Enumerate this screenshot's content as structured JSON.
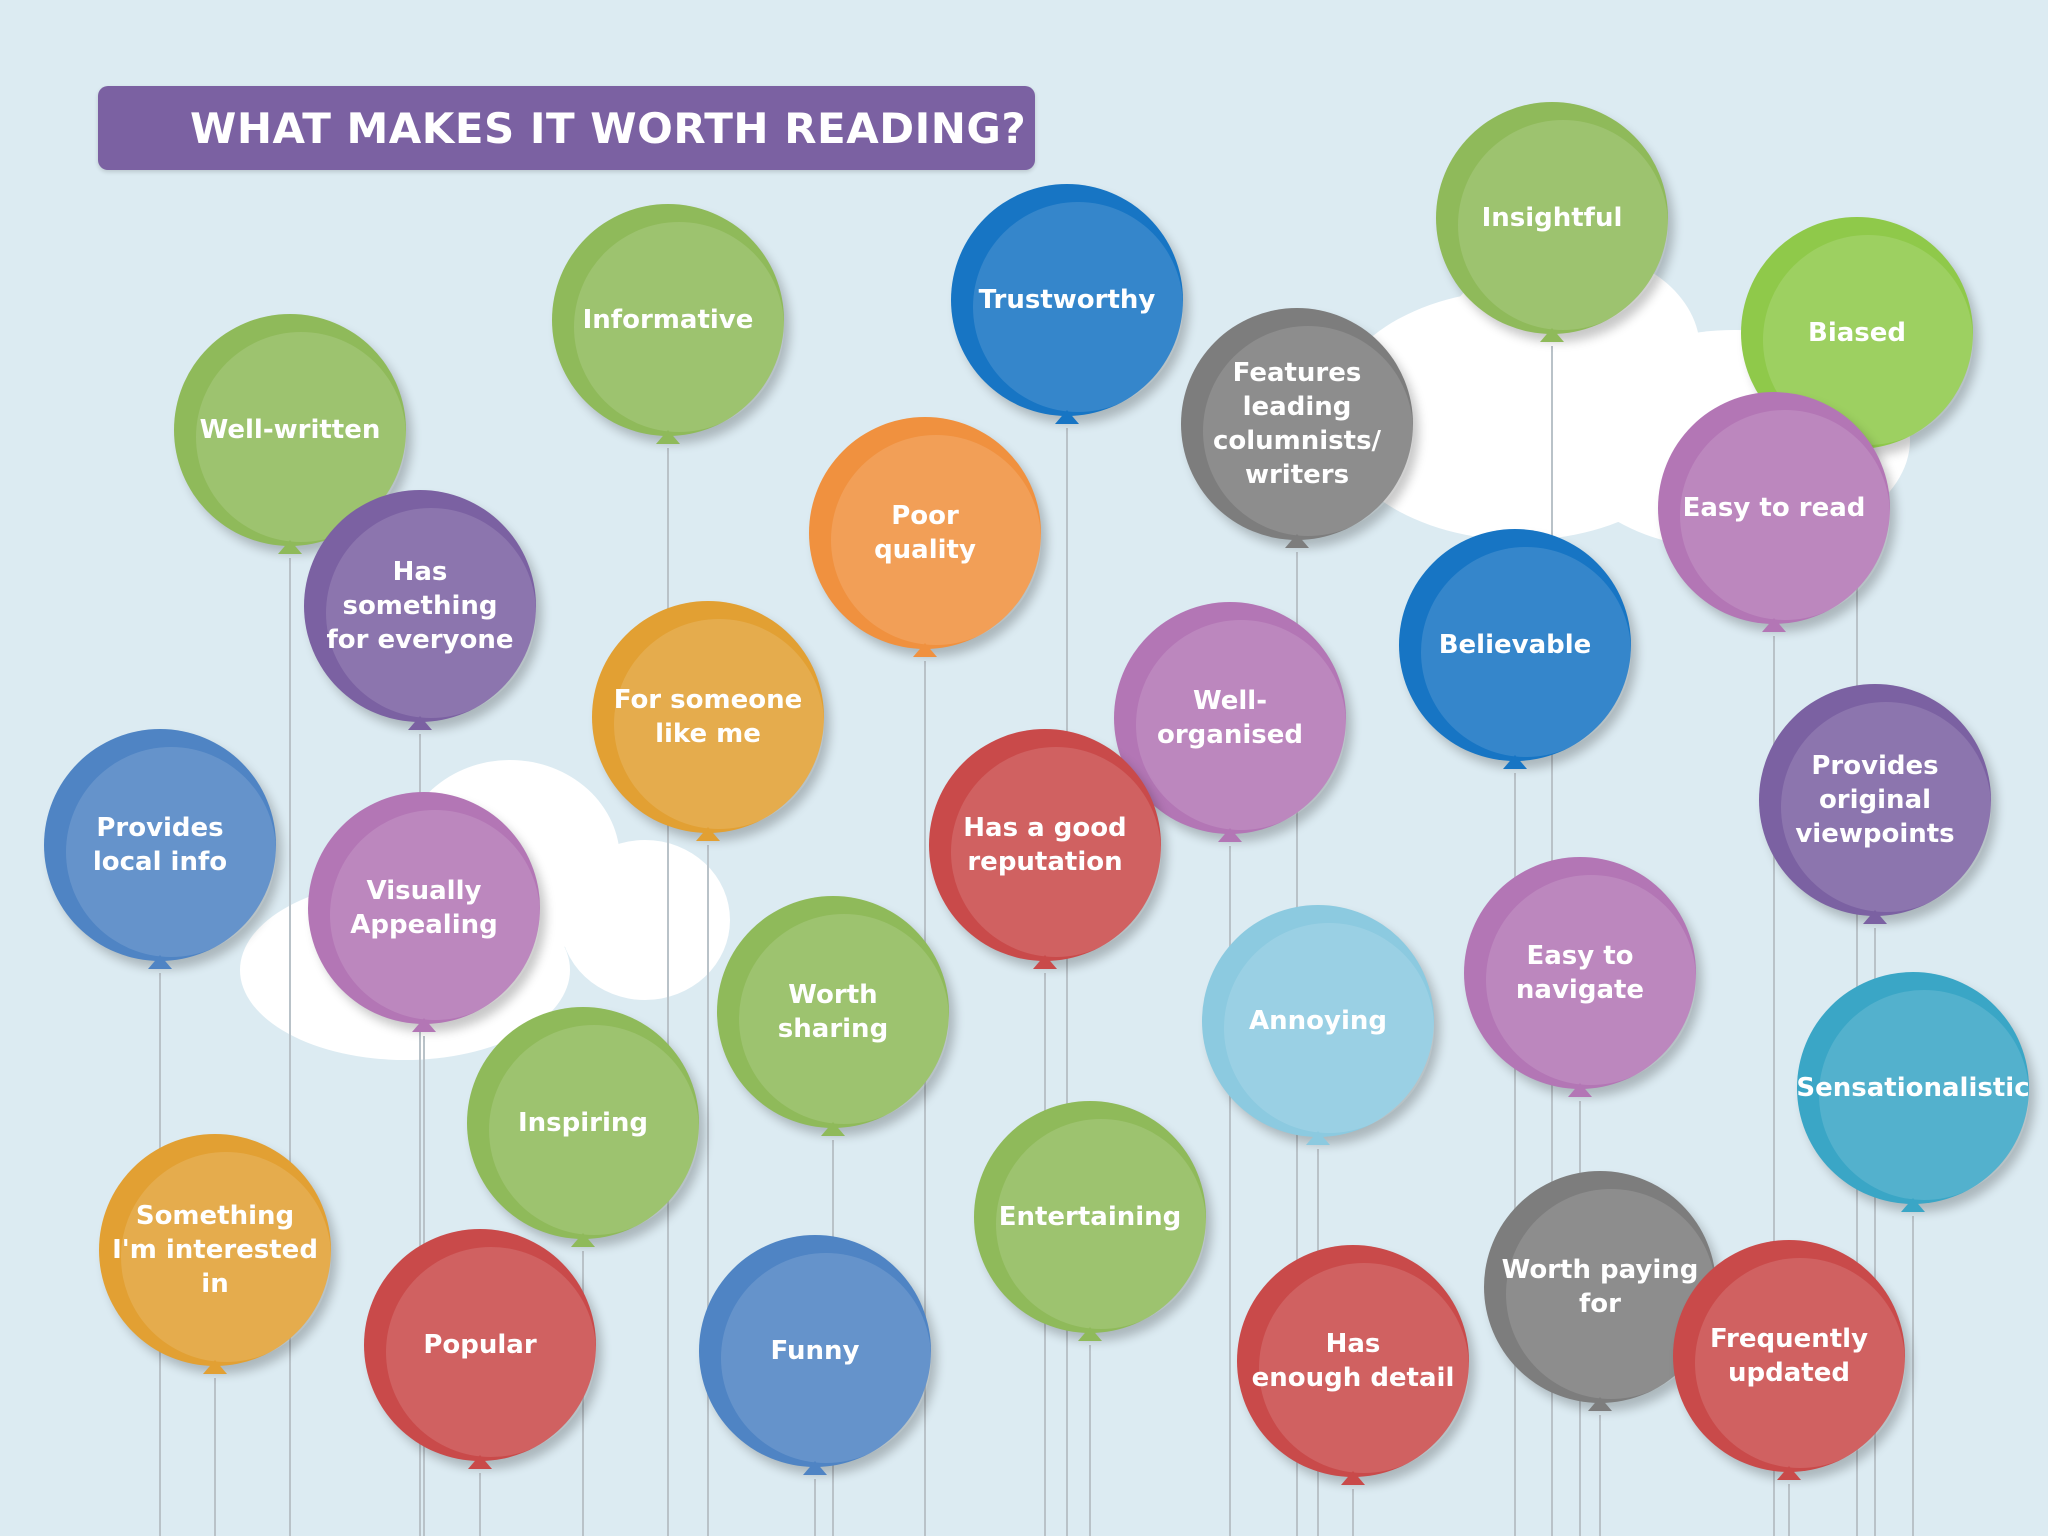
{
  "title": "WHAT MAKES IT WORTH READING?",
  "colors": {
    "background": "#dcebf2",
    "banner": "#7b61a2",
    "green": "#8fba5a",
    "blue": "#1775c4",
    "steel_blue": "#4f84c4",
    "purple": "#7b61a2",
    "orchid": "#b376b5",
    "orange": "#f0913f",
    "amber": "#e2a033",
    "red": "#c94a4a",
    "gray": "#7d7d7d",
    "light_blue": "#8ccae0",
    "teal": "#3aa6c6",
    "lime": "#8fc94a"
  },
  "balloons": [
    {
      "label": "Well-written",
      "color": "green"
    },
    {
      "label": "Informative",
      "color": "green"
    },
    {
      "label": "Trustworthy",
      "color": "blue"
    },
    {
      "label": "Insightful",
      "color": "green"
    },
    {
      "label": "Biased",
      "color": "lime"
    },
    {
      "label": "Features\nleading\ncolumnists/\nwriters",
      "color": "gray"
    },
    {
      "label": "Easy to read",
      "color": "orchid"
    },
    {
      "label": "Has\nsomething\nfor everyone",
      "color": "purple"
    },
    {
      "label": "Poor\nquality",
      "color": "orange"
    },
    {
      "label": "Believable",
      "color": "blue"
    },
    {
      "label": "For someone\nlike me",
      "color": "amber"
    },
    {
      "label": "Well-\norganised",
      "color": "orchid"
    },
    {
      "label": "Provides\noriginal\nviewpoints",
      "color": "purple"
    },
    {
      "label": "Provides\nlocal info",
      "color": "steel_blue"
    },
    {
      "label": "Has a good\nreputation",
      "color": "red"
    },
    {
      "label": "Visually\nAppealing",
      "color": "orchid"
    },
    {
      "label": "Easy to\nnavigate",
      "color": "orchid"
    },
    {
      "label": "Worth\nsharing",
      "color": "green"
    },
    {
      "label": "Annoying",
      "color": "light_blue"
    },
    {
      "label": "Sensationalistic",
      "color": "teal"
    },
    {
      "label": "Inspiring",
      "color": "green"
    },
    {
      "label": "Entertaining",
      "color": "green"
    },
    {
      "label": "Something\nI'm interested\nin",
      "color": "amber"
    },
    {
      "label": "Worth paying\nfor",
      "color": "gray"
    },
    {
      "label": "Popular",
      "color": "red"
    },
    {
      "label": "Funny",
      "color": "steel_blue"
    },
    {
      "label": "Has\nenough detail",
      "color": "red"
    },
    {
      "label": "Frequently\nupdated",
      "color": "red"
    }
  ]
}
